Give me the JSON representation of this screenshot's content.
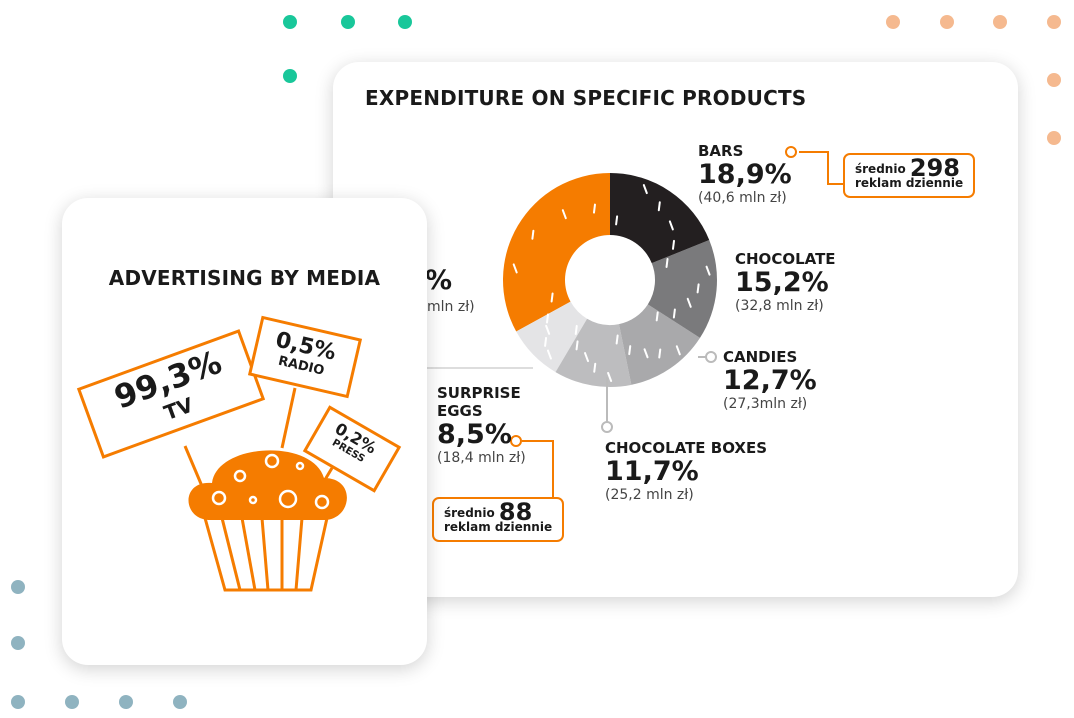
{
  "right_card": {
    "title": "EXPENDITURE ON SPECIFIC PRODUCTS",
    "hidden_partial": {
      "pct": "%",
      "amount": "mln zł)"
    },
    "callout_bars": {
      "prefix": "średnio",
      "number": "298",
      "suffix": "reklam dziennie"
    },
    "callout_eggs": {
      "prefix": "średnio",
      "number": "88",
      "suffix": "reklam dziennie"
    }
  },
  "left_card": {
    "title": "ADVERTISING BY MEDIA",
    "signs": [
      {
        "pct": "99,3%",
        "label": "TV"
      },
      {
        "pct": "0,5%",
        "label": "RADIO"
      },
      {
        "pct": "0,2%",
        "label": "PRESS"
      }
    ]
  },
  "chart_data": {
    "type": "pie",
    "title": "EXPENDITURE ON SPECIFIC PRODUCTS",
    "categories": [
      "BARS",
      "CHOCOLATE",
      "CANDIES",
      "CHOCOLATE BOXES",
      "SURPRISE EGGS",
      "(hidden)"
    ],
    "values": [
      18.9,
      15.2,
      12.7,
      11.7,
      8.5,
      null
    ],
    "labels": [
      "18,9%",
      "15,2%",
      "12,7%",
      "11,7%",
      "8,5%",
      ""
    ],
    "amounts": [
      "(40,6 mln zł)",
      "(32,8 mln zł)",
      "(27,3mln zł)",
      "(25,2 mln zł)",
      "(18,4 mln zł)",
      ""
    ],
    "colors": [
      "#231f20",
      "#7a7a7c",
      "#a9a9ab",
      "#bdbdbf",
      "#e4e4e6",
      "#f57c00"
    ]
  }
}
